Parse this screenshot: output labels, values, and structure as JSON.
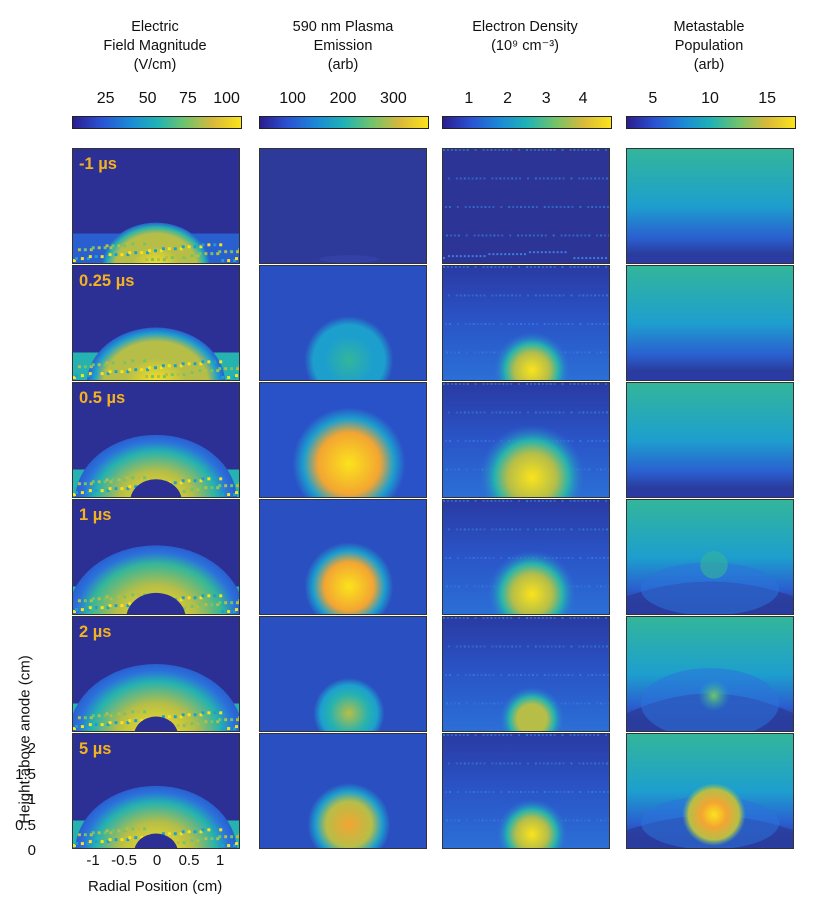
{
  "colorbar_stops": [
    "#2b1d8f",
    "#2a52d3",
    "#1b88d6",
    "#1fb2b5",
    "#71c36b",
    "#d8b93b",
    "#fbe31c"
  ],
  "time_labels": [
    "-1 µs",
    "0.25 µs",
    "0.5 µs",
    "1 µs",
    "2 µs",
    "5 µs"
  ],
  "columns": [
    {
      "title": [
        "Electric",
        "Field Magnitude",
        "(V/cm)"
      ],
      "ticks": [
        "25",
        "50",
        "75",
        "100"
      ],
      "tick_frac": [
        0.2,
        0.45,
        0.69,
        0.92
      ]
    },
    {
      "title": [
        "590 nm Plasma",
        "Emission",
        "(arb)"
      ],
      "ticks": [
        "100",
        "200",
        "300"
      ],
      "tick_frac": [
        0.2,
        0.5,
        0.8
      ]
    },
    {
      "title": [
        "Electron Density",
        "(10⁹ cm⁻³)",
        ""
      ],
      "ticks": [
        "1",
        "2",
        "3",
        "4"
      ],
      "tick_frac": [
        0.16,
        0.39,
        0.62,
        0.84
      ]
    },
    {
      "title": [
        "Metastable",
        "Population",
        "(arb)"
      ],
      "ticks": [
        "5",
        "10",
        "15"
      ],
      "tick_frac": [
        0.16,
        0.5,
        0.84
      ]
    }
  ],
  "y_axis": {
    "label": "Height above anode (cm)",
    "ticks": [
      "2",
      "1.5",
      "1",
      "0.5",
      "0"
    ]
  },
  "x_axis": {
    "label": "Radial Position (cm)",
    "ticks": [
      "-1",
      "-0.5",
      "0",
      "0.5",
      "1"
    ]
  }
}
